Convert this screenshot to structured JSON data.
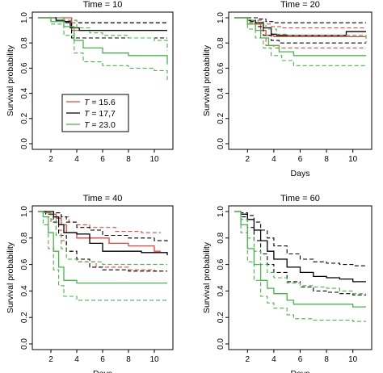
{
  "colors": {
    "red": "#e8453c",
    "black": "#000000",
    "green": "#44b649"
  },
  "chart_data": [
    {
      "type": "line",
      "title": "Time = 10",
      "xlabel": "",
      "ylabel": "Survival probability",
      "xlim": [
        1,
        11
      ],
      "ylim": [
        0,
        1
      ],
      "xticks": [
        "2",
        "4",
        "6",
        "8",
        "10"
      ],
      "yticks": [
        "0.0",
        "0.2",
        "0.4",
        "0.6",
        "0.8",
        "1.0"
      ],
      "legend": {
        "placement": "center-left",
        "entries": [
          {
            "prefix": "T",
            "text": " = 15.6",
            "color": "red"
          },
          {
            "prefix": "T",
            "text": " = 17,7",
            "color": "black"
          },
          {
            "prefix": "T",
            "text": " = 23.0",
            "color": "green"
          }
        ]
      },
      "series": [
        {
          "color": "red",
          "style": "solid",
          "x": [
            1,
            2.5,
            3.6,
            11
          ],
          "y": [
            1.0,
            1.0,
            0.9,
            0.9
          ]
        },
        {
          "color": "red",
          "style": "dashed",
          "x": [
            1,
            2.5,
            3.6,
            11
          ],
          "y": [
            1.0,
            1.0,
            0.84,
            0.84
          ]
        },
        {
          "color": "red",
          "style": "dashed",
          "x": [
            1,
            2.5,
            3.6,
            11
          ],
          "y": [
            1.0,
            1.0,
            0.96,
            0.96
          ]
        },
        {
          "color": "black",
          "style": "solid",
          "x": [
            1,
            2.4,
            3.0,
            3.5,
            4.2,
            11
          ],
          "y": [
            1.0,
            0.98,
            0.97,
            0.92,
            0.9,
            0.9
          ]
        },
        {
          "color": "black",
          "style": "dashed",
          "x": [
            1,
            2.4,
            3.1,
            3.6,
            11
          ],
          "y": [
            1.0,
            0.98,
            0.96,
            0.84,
            0.84
          ]
        },
        {
          "color": "black",
          "style": "dashed",
          "x": [
            1,
            2.4,
            3.0,
            4.0,
            11
          ],
          "y": [
            1.0,
            1.0,
            0.98,
            0.96,
            0.96
          ]
        },
        {
          "color": "green",
          "style": "solid",
          "x": [
            1,
            2.0,
            3.0,
            3.8,
            4.5,
            6.0,
            8.0,
            10.0,
            11
          ],
          "y": [
            1.0,
            0.97,
            0.93,
            0.82,
            0.76,
            0.72,
            0.7,
            0.7,
            0.63
          ]
        },
        {
          "color": "green",
          "style": "dashed",
          "x": [
            1,
            2.0,
            3.0,
            3.8,
            4.5,
            6.0,
            8.0,
            10.0,
            11
          ],
          "y": [
            1.0,
            0.95,
            0.86,
            0.72,
            0.65,
            0.62,
            0.6,
            0.58,
            0.5
          ]
        },
        {
          "color": "green",
          "style": "dashed",
          "x": [
            1,
            2.0,
            3.0,
            4.0,
            5.0,
            6.0,
            8.0,
            10.0,
            11
          ],
          "y": [
            1.0,
            1.0,
            0.98,
            0.92,
            0.88,
            0.86,
            0.84,
            0.82,
            0.74
          ]
        }
      ]
    },
    {
      "type": "line",
      "title": "Time = 20",
      "xlabel": "Days",
      "ylabel": "Survival probability",
      "xlim": [
        1,
        11
      ],
      "ylim": [
        0,
        1
      ],
      "xticks": [
        "2",
        "4",
        "6",
        "8",
        "10"
      ],
      "yticks": [
        "0.0",
        "0.2",
        "0.4",
        "0.6",
        "0.8",
        "1.0"
      ],
      "series": [
        {
          "color": "red",
          "style": "solid",
          "x": [
            1,
            2.0,
            2.6,
            3.0,
            3.4,
            4.0,
            11
          ],
          "y": [
            1.0,
            0.98,
            0.95,
            0.9,
            0.86,
            0.85,
            0.85
          ]
        },
        {
          "color": "red",
          "style": "dashed",
          "x": [
            1,
            2.0,
            2.6,
            3.0,
            3.4,
            4.0,
            11
          ],
          "y": [
            1.0,
            0.96,
            0.9,
            0.84,
            0.78,
            0.76,
            0.76
          ]
        },
        {
          "color": "red",
          "style": "dashed",
          "x": [
            1,
            2.0,
            2.8,
            3.2,
            3.8,
            4.5,
            11
          ],
          "y": [
            1.0,
            1.0,
            0.98,
            0.95,
            0.93,
            0.92,
            0.92
          ]
        },
        {
          "color": "black",
          "style": "solid",
          "x": [
            1,
            2.0,
            2.6,
            3.2,
            3.8,
            4.2,
            8.0,
            9.5,
            11
          ],
          "y": [
            1.0,
            0.98,
            0.96,
            0.92,
            0.87,
            0.86,
            0.86,
            0.89,
            0.89
          ]
        },
        {
          "color": "black",
          "style": "dashed",
          "x": [
            1,
            2.0,
            2.6,
            3.2,
            3.8,
            4.4,
            11
          ],
          "y": [
            1.0,
            0.97,
            0.93,
            0.86,
            0.82,
            0.8,
            0.8
          ]
        },
        {
          "color": "black",
          "style": "dashed",
          "x": [
            1,
            2.0,
            2.8,
            3.4,
            4.0,
            11
          ],
          "y": [
            1.0,
            1.0,
            0.99,
            0.97,
            0.96,
            0.96
          ]
        },
        {
          "color": "green",
          "style": "solid",
          "x": [
            1,
            2.0,
            2.6,
            3.0,
            3.6,
            4.4,
            5.5,
            11
          ],
          "y": [
            1.0,
            0.95,
            0.9,
            0.84,
            0.78,
            0.73,
            0.7,
            0.7
          ]
        },
        {
          "color": "green",
          "style": "dashed",
          "x": [
            1,
            2.0,
            2.6,
            3.2,
            3.8,
            4.6,
            5.5,
            11
          ],
          "y": [
            1.0,
            0.91,
            0.84,
            0.76,
            0.7,
            0.66,
            0.62,
            0.62
          ]
        },
        {
          "color": "green",
          "style": "dashed",
          "x": [
            1,
            2.0,
            2.8,
            3.4,
            4.2,
            5.0,
            11
          ],
          "y": [
            1.0,
            0.98,
            0.95,
            0.91,
            0.87,
            0.86,
            0.8
          ]
        }
      ]
    },
    {
      "type": "line",
      "title": "Time = 40",
      "xlabel": "Days",
      "ylabel": "Survival probability",
      "xlim": [
        1,
        11
      ],
      "ylim": [
        0,
        1
      ],
      "xticks": [
        "2",
        "4",
        "6",
        "8",
        "10"
      ],
      "yticks": [
        "0.0",
        "0.2",
        "0.4",
        "0.6",
        "0.8",
        "1.0"
      ],
      "series": [
        {
          "color": "red",
          "style": "solid",
          "x": [
            1,
            1.6,
            2.0,
            2.4,
            2.8,
            3.2,
            4.0,
            6.5,
            8.0,
            10.0,
            10.5
          ],
          "y": [
            1.0,
            0.99,
            0.98,
            0.95,
            0.9,
            0.84,
            0.8,
            0.76,
            0.74,
            0.7,
            0.7
          ]
        },
        {
          "color": "red",
          "style": "dashed",
          "x": [
            1,
            1.6,
            2.0,
            2.4,
            2.8,
            3.2,
            4.0,
            5.5,
            8.0,
            10.0,
            10.5
          ],
          "y": [
            1.0,
            0.96,
            0.92,
            0.86,
            0.78,
            0.7,
            0.62,
            0.58,
            0.56,
            0.55,
            0.55
          ]
        },
        {
          "color": "red",
          "style": "dashed",
          "x": [
            1,
            1.8,
            2.2,
            2.8,
            3.4,
            4.0,
            5.0,
            7.0,
            9.0,
            10.5
          ],
          "y": [
            1.0,
            1.0,
            0.99,
            0.96,
            0.92,
            0.9,
            0.88,
            0.85,
            0.84,
            0.84
          ]
        },
        {
          "color": "black",
          "style": "solid",
          "x": [
            1,
            1.6,
            2.2,
            2.6,
            3.0,
            4.0,
            5.0,
            6.0,
            8.0,
            9.0,
            11
          ],
          "y": [
            1.0,
            1.0,
            0.96,
            0.9,
            0.84,
            0.83,
            0.76,
            0.7,
            0.7,
            0.69,
            0.67
          ]
        },
        {
          "color": "black",
          "style": "dashed",
          "x": [
            1,
            1.6,
            2.2,
            2.6,
            3.2,
            4.0,
            5.0,
            6.0,
            8.0,
            11
          ],
          "y": [
            1.0,
            0.98,
            0.92,
            0.82,
            0.7,
            0.64,
            0.58,
            0.56,
            0.55,
            0.55
          ]
        },
        {
          "color": "black",
          "style": "dashed",
          "x": [
            1,
            1.6,
            2.2,
            2.8,
            3.2,
            4.0,
            5.0,
            6.0,
            8.0,
            10.0,
            11
          ],
          "y": [
            1.0,
            1.0,
            0.99,
            0.96,
            0.92,
            0.88,
            0.86,
            0.82,
            0.8,
            0.78,
            0.76
          ]
        },
        {
          "color": "green",
          "style": "solid",
          "x": [
            1,
            1.4,
            1.8,
            2.2,
            2.6,
            3.0,
            4.0,
            11
          ],
          "y": [
            1.0,
            0.96,
            0.84,
            0.7,
            0.58,
            0.48,
            0.46,
            0.46
          ]
        },
        {
          "color": "green",
          "style": "dashed",
          "x": [
            1,
            1.4,
            1.8,
            2.2,
            2.6,
            3.0,
            4.0,
            11
          ],
          "y": [
            1.0,
            0.9,
            0.72,
            0.56,
            0.44,
            0.36,
            0.33,
            0.33
          ]
        },
        {
          "color": "green",
          "style": "dashed",
          "x": [
            1,
            1.5,
            2.0,
            2.4,
            2.8,
            3.2,
            4.0,
            6.0,
            11
          ],
          "y": [
            1.0,
            0.99,
            0.94,
            0.82,
            0.72,
            0.64,
            0.62,
            0.6,
            0.6
          ]
        }
      ]
    },
    {
      "type": "line",
      "title": "Time = 60",
      "xlabel": "Days",
      "ylabel": "Survival probability",
      "xlim": [
        1,
        11
      ],
      "ylim": [
        0,
        1
      ],
      "xticks": [
        "2",
        "4",
        "6",
        "8",
        "10"
      ],
      "yticks": [
        "0.0",
        "0.2",
        "0.4",
        "0.6",
        "0.8",
        "1.0"
      ],
      "series": [
        {
          "color": "black",
          "style": "solid",
          "x": [
            1,
            1.5,
            2.0,
            2.5,
            3.0,
            3.5,
            4.0,
            5.0,
            6.0,
            7.0,
            8.0,
            9.0,
            10.0,
            11
          ],
          "y": [
            1.0,
            0.98,
            0.94,
            0.86,
            0.78,
            0.7,
            0.64,
            0.58,
            0.54,
            0.51,
            0.5,
            0.49,
            0.47,
            0.47
          ]
        },
        {
          "color": "black",
          "style": "dashed",
          "x": [
            1,
            1.5,
            2.0,
            2.5,
            3.0,
            3.5,
            4.0,
            5.0,
            6.0,
            7.0,
            8.0,
            9.0,
            10.0,
            11
          ],
          "y": [
            1.0,
            0.99,
            0.97,
            0.92,
            0.86,
            0.8,
            0.74,
            0.68,
            0.64,
            0.62,
            0.61,
            0.6,
            0.59,
            0.59
          ]
        },
        {
          "color": "black",
          "style": "dashed",
          "x": [
            1,
            1.5,
            2.0,
            2.5,
            3.0,
            3.5,
            4.0,
            5.0,
            6.0,
            7.0,
            8.0,
            9.0,
            10.0,
            11
          ],
          "y": [
            1.0,
            0.96,
            0.88,
            0.78,
            0.68,
            0.6,
            0.54,
            0.47,
            0.43,
            0.4,
            0.39,
            0.38,
            0.37,
            0.37
          ]
        },
        {
          "color": "green",
          "style": "solid",
          "x": [
            1,
            1.5,
            2.0,
            2.5,
            3.0,
            3.5,
            4.0,
            5.0,
            5.5,
            7.0,
            9.0,
            10.0,
            11
          ],
          "y": [
            1.0,
            0.9,
            0.72,
            0.6,
            0.48,
            0.42,
            0.38,
            0.33,
            0.3,
            0.3,
            0.3,
            0.28,
            0.28
          ]
        },
        {
          "color": "green",
          "style": "dashed",
          "x": [
            1,
            1.5,
            2.0,
            2.5,
            3.0,
            3.5,
            4.0,
            5.0,
            5.5,
            7.0,
            9.0,
            10.0,
            11
          ],
          "y": [
            1.0,
            0.84,
            0.62,
            0.48,
            0.36,
            0.31,
            0.27,
            0.22,
            0.19,
            0.18,
            0.18,
            0.17,
            0.17
          ]
        },
        {
          "color": "green",
          "style": "dashed",
          "x": [
            1,
            1.5,
            2.0,
            2.5,
            3.0,
            3.5,
            4.0,
            5.0,
            6.0,
            7.0,
            8.0,
            9.0,
            10.0,
            11
          ],
          "y": [
            1.0,
            0.94,
            0.8,
            0.7,
            0.6,
            0.54,
            0.5,
            0.46,
            0.44,
            0.43,
            0.42,
            0.4,
            0.38,
            0.38
          ]
        }
      ]
    }
  ]
}
